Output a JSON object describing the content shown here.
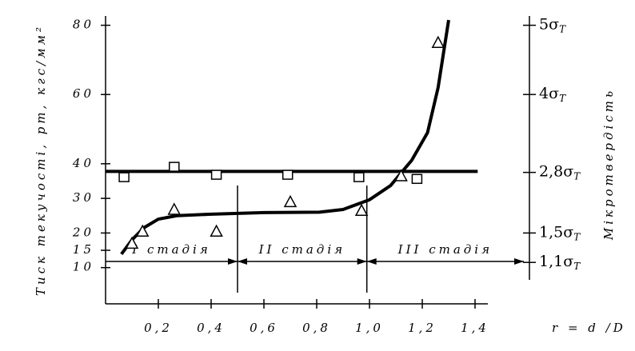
{
  "chart_data": {
    "type": "line",
    "x_label": "r = d /D",
    "y_label": "Тиск текучості, pт, кгс/мм²",
    "y2_label": "Мікротвердість",
    "xlim": [
      0,
      1.6
    ],
    "ylim": [
      0,
      82
    ],
    "y2lim": [
      0,
      82
    ],
    "xticks": [
      {
        "value": 0.2,
        "label": "0,2"
      },
      {
        "value": 0.4,
        "label": "0,4"
      },
      {
        "value": 0.6,
        "label": "0,6"
      },
      {
        "value": 0.8,
        "label": "0,8"
      },
      {
        "value": 1.0,
        "label": "1,0"
      },
      {
        "value": 1.2,
        "label": "1,2"
      },
      {
        "value": 1.4,
        "label": "1,4"
      }
    ],
    "yticks": [
      10,
      15,
      20,
      30,
      40,
      60,
      80
    ],
    "y2ticks": [
      {
        "value": 80,
        "label": "5σ",
        "sub": "T"
      },
      {
        "value": 60,
        "label": "4σ",
        "sub": "T"
      },
      {
        "value": 37.5,
        "label": "2,8σ",
        "sub": "T"
      },
      {
        "value": 20,
        "label": "1,5σ",
        "sub": "T"
      },
      {
        "value": 11.5,
        "label": "1,1σ",
        "sub": "T"
      }
    ],
    "stage_bounds": [
      0.5,
      0.99
    ],
    "stages": [
      "I стадія",
      "II стадія",
      "III стадія"
    ],
    "series": [
      {
        "style": "line",
        "color": "#000000",
        "x": [
          0,
          1.41
        ],
        "values": [
          37.8,
          37.8
        ]
      },
      {
        "style": "line",
        "color": "#000000",
        "x": [
          0.06,
          0.1,
          0.145,
          0.2,
          0.27,
          0.39,
          0.6,
          0.81,
          0.9,
          1.0,
          1.08,
          1.16,
          1.22,
          1.26,
          1.3
        ],
        "values": [
          13.9,
          18,
          21.5,
          24,
          25,
          25.4,
          25.9,
          26,
          26.8,
          29.6,
          33.7,
          41,
          49,
          62,
          81.5
        ]
      },
      {
        "style": "square",
        "color": "#000000",
        "x": [
          0.07,
          0.26,
          0.42,
          0.69,
          0.96,
          1.18
        ],
        "values": [
          36,
          39,
          36.7,
          36.7,
          36,
          35.5
        ]
      },
      {
        "style": "triangle",
        "color": "#000000",
        "x": [
          0.1,
          0.14,
          0.26,
          0.42,
          0.7,
          0.97,
          1.12,
          1.26
        ],
        "values": [
          17,
          20.5,
          26.8,
          20.5,
          29,
          26.5,
          36.5,
          75
        ]
      }
    ]
  }
}
